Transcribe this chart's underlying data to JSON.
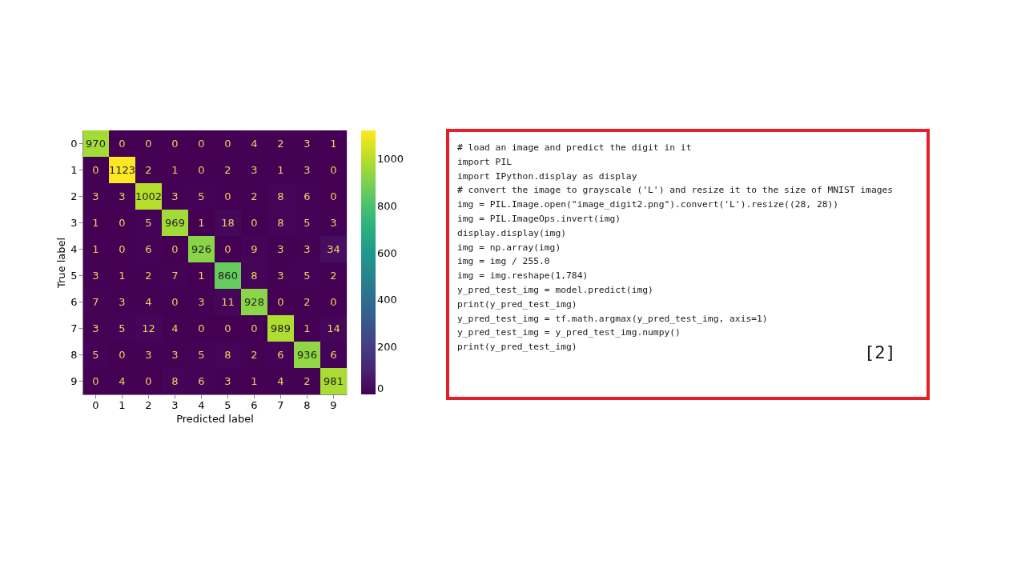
{
  "chart_data": [
    {
      "type": "heatmap",
      "xlabel": "Predicted label",
      "ylabel": "True label",
      "categories": [
        "0",
        "1",
        "2",
        "3",
        "4",
        "5",
        "6",
        "7",
        "8",
        "9"
      ],
      "y_categories": [
        "0",
        "1",
        "2",
        "3",
        "4",
        "5",
        "6",
        "7",
        "8",
        "9"
      ],
      "cells": [
        [
          970,
          0,
          0,
          0,
          0,
          0,
          4,
          2,
          3,
          1
        ],
        [
          0,
          1123,
          2,
          1,
          0,
          2,
          3,
          1,
          3,
          0
        ],
        [
          3,
          3,
          1002,
          3,
          5,
          0,
          2,
          8,
          6,
          0
        ],
        [
          1,
          0,
          5,
          969,
          1,
          18,
          0,
          8,
          5,
          3
        ],
        [
          1,
          0,
          6,
          0,
          926,
          0,
          9,
          3,
          3,
          34
        ],
        [
          3,
          1,
          2,
          7,
          1,
          860,
          8,
          3,
          5,
          2
        ],
        [
          7,
          3,
          4,
          0,
          3,
          11,
          928,
          0,
          2,
          0
        ],
        [
          3,
          5,
          12,
          4,
          0,
          0,
          0,
          989,
          1,
          14
        ],
        [
          5,
          0,
          3,
          3,
          5,
          8,
          2,
          6,
          936,
          6
        ],
        [
          0,
          4,
          0,
          8,
          6,
          3,
          1,
          4,
          2,
          981
        ]
      ],
      "clim": [
        0,
        1123
      ],
      "cticks": [
        0,
        200,
        400,
        600,
        800,
        1000
      ],
      "data_labels": true,
      "grid": false
    },
    {
      "type": "other",
      "annotations": [
        "# load an image and predict the digit in it",
        "import PIL",
        "import IPython.display as display",
        "# convert the image to grayscale ('L') and resize it to the size of MNIST images",
        "img = PIL.Image.open(\"image_digit2.png\").convert('L').resize((28, 28))",
        "img = PIL.ImageOps.invert(img)",
        "display.display(img)",
        "img = np.array(img)",
        "img = img / 255.0",
        "img = img.reshape(1,784)",
        "y_pred_test_img = model.predict(img)",
        "print(y_pred_test_img)",
        "y_pred_test_img = tf.math.argmax(y_pred_test_img, axis=1)",
        "y_pred_test_img = y_pred_test_img.numpy()",
        "print(y_pred_test_img)",
        "[2]"
      ]
    }
  ]
}
